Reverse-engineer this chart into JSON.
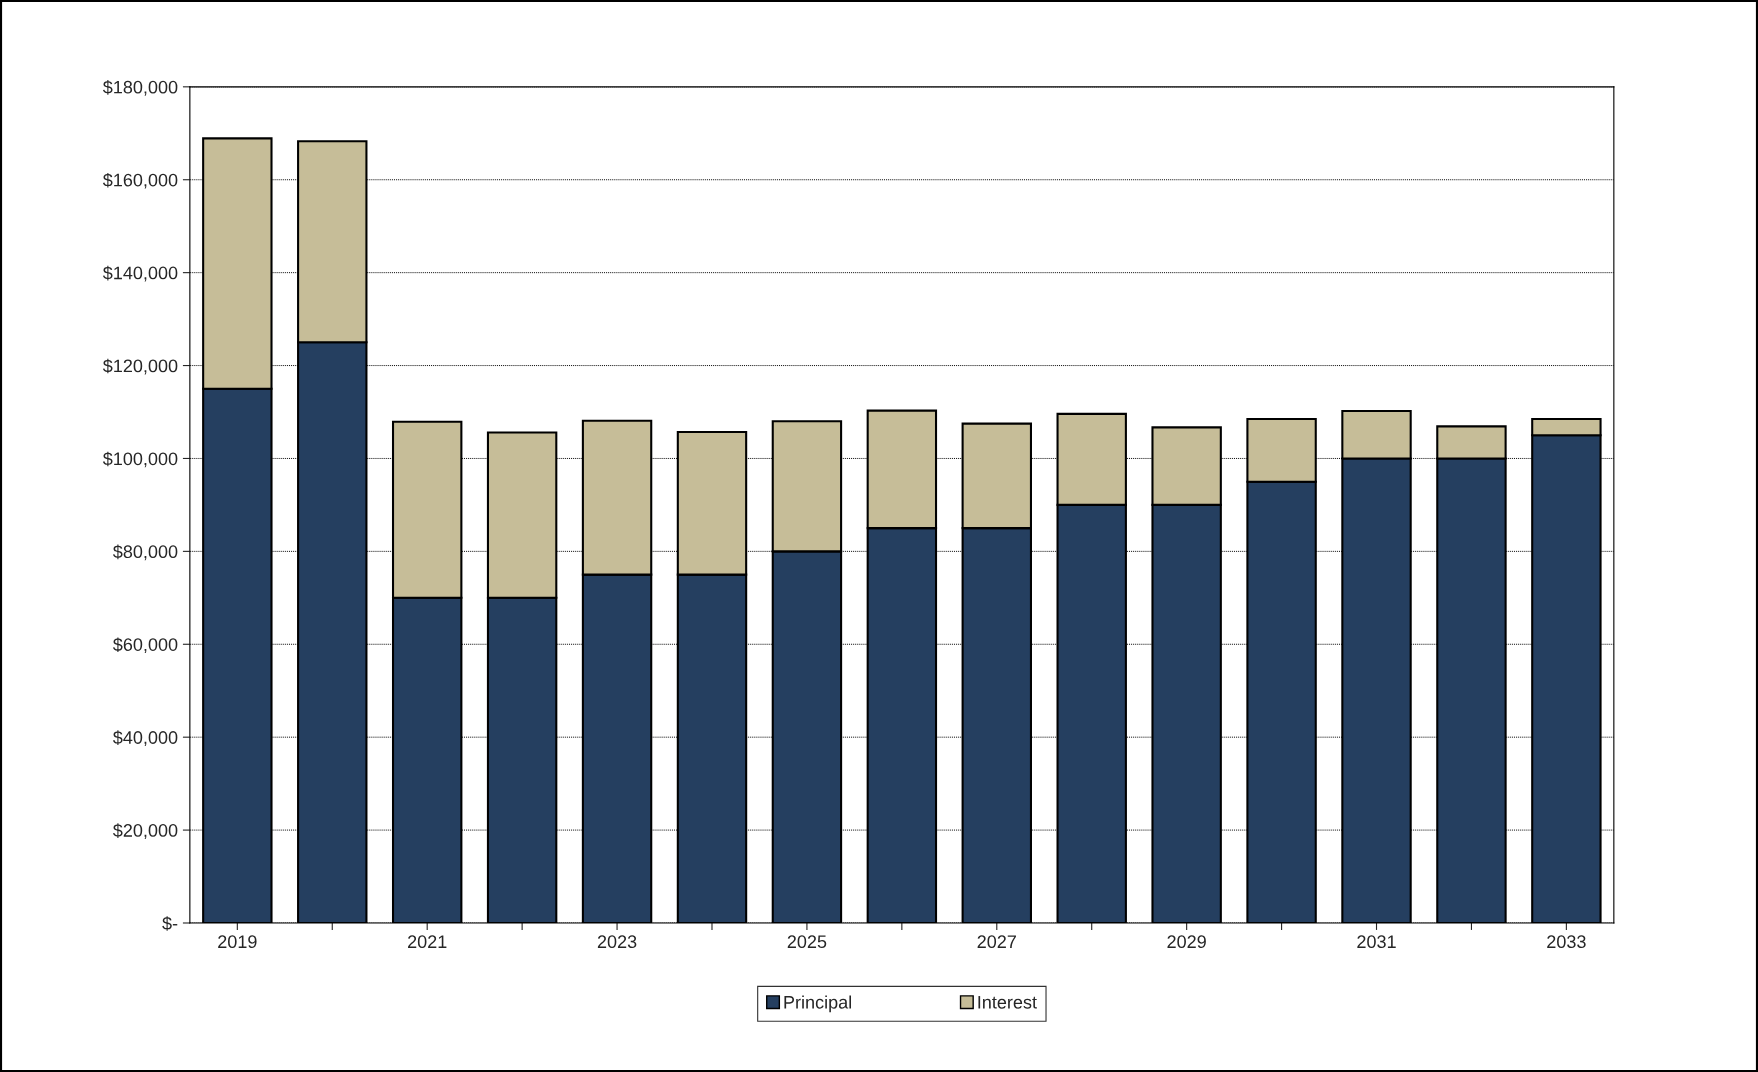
{
  "chart_data": {
    "type": "bar",
    "stacked": true,
    "categories": [
      "2019",
      null,
      "2021",
      null,
      "2023",
      null,
      "2025",
      null,
      "2027",
      null,
      "2029",
      null,
      "2031",
      null,
      "2033"
    ],
    "series": [
      {
        "name": "Principal",
        "color": "#253f60",
        "values": [
          115000,
          125000,
          70000,
          70000,
          75000,
          75000,
          80000,
          85000,
          85000,
          90000,
          90000,
          95000,
          100000,
          100000,
          105000
        ]
      },
      {
        "name": "Interest",
        "color": "#c6bd98",
        "values": [
          53900,
          43300,
          37900,
          35600,
          33100,
          30700,
          28000,
          25300,
          22500,
          19600,
          16700,
          13500,
          10200,
          6900,
          3500
        ]
      }
    ],
    "ylim": [
      0,
      180000
    ],
    "yticks": [
      {
        "value": 0,
        "label": "$-"
      },
      {
        "value": 20000,
        "label": "$20,000"
      },
      {
        "value": 40000,
        "label": "$40,000"
      },
      {
        "value": 60000,
        "label": "$60,000"
      },
      {
        "value": 80000,
        "label": "$80,000"
      },
      {
        "value": 100000,
        "label": "$100,000"
      },
      {
        "value": 120000,
        "label": "$120,000"
      },
      {
        "value": 140000,
        "label": "$140,000"
      },
      {
        "value": 160000,
        "label": "$160,000"
      },
      {
        "value": 180000,
        "label": "$180,000"
      }
    ],
    "grid": "y",
    "legend": "bottom"
  }
}
